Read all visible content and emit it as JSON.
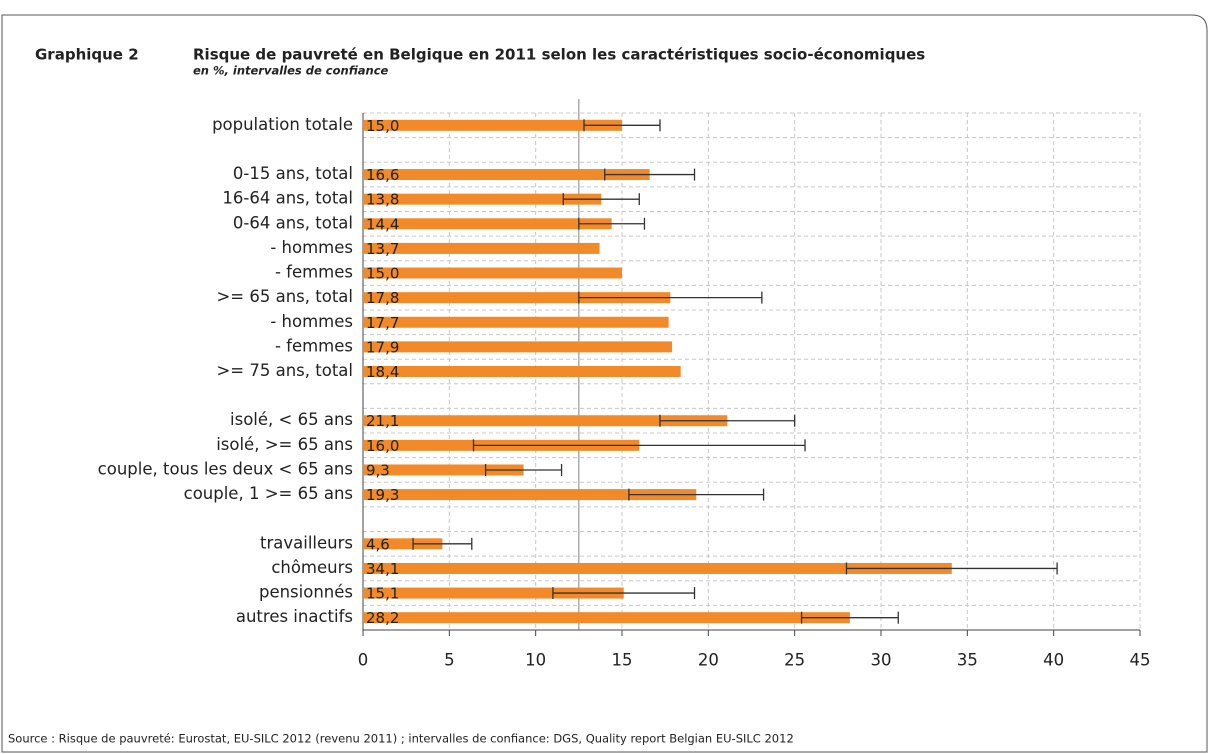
{
  "chart_data": {
    "type": "bar",
    "orientation": "horizontal",
    "label": "Graphique 2",
    "title": "Risque de pauvreté en Belgique en 2011 selon les caractéristiques socio-économiques",
    "subtitle": "en %, intervalles de confiance",
    "source": "Source : Risque de pauvreté: Eurostat, EU-SILC 2012 (revenu 2011) ; intervalles de confiance: DGS, Quality report Belgian EU-SILC 2012",
    "categories": [
      "population totale",
      null,
      "0-15 ans, total",
      "16-64 ans, total",
      "0-64 ans, total",
      "- hommes",
      "- femmes",
      ">= 65 ans, total",
      "- hommes",
      "- femmes",
      ">= 75 ans, total",
      null,
      "isolé, < 65 ans",
      "isolé, >= 65 ans",
      "couple, tous les deux < 65 ans",
      "couple, 1 >= 65 ans",
      null,
      "travailleurs",
      "chômeurs",
      "pensionnés",
      "autres inactifs"
    ],
    "values": [
      15.0,
      null,
      16.6,
      13.8,
      14.4,
      13.7,
      15.0,
      17.8,
      17.7,
      17.9,
      18.4,
      null,
      21.1,
      16.0,
      9.3,
      19.3,
      null,
      4.6,
      34.1,
      15.1,
      28.2
    ],
    "value_labels": [
      "15,0",
      null,
      "16,6",
      "13,8",
      "14,4",
      "13,7",
      "15,0",
      "17,8",
      "17,7",
      "17,9",
      "18,4",
      null,
      "21,1",
      "16,0",
      "9,3",
      "19,3",
      null,
      "4,6",
      "34,1",
      "15,1",
      "28,2"
    ],
    "errors": [
      2.2,
      null,
      2.6,
      2.2,
      1.9,
      null,
      null,
      5.3,
      null,
      null,
      null,
      null,
      3.9,
      9.6,
      2.2,
      3.9,
      null,
      1.7,
      6.1,
      4.1,
      2.8
    ],
    "reference_line": 12.5,
    "color": "#f28a2a",
    "xlim": [
      0,
      45
    ],
    "xticks": [
      0,
      5,
      10,
      15,
      20,
      25,
      30,
      35,
      40,
      45
    ],
    "grid": true
  }
}
